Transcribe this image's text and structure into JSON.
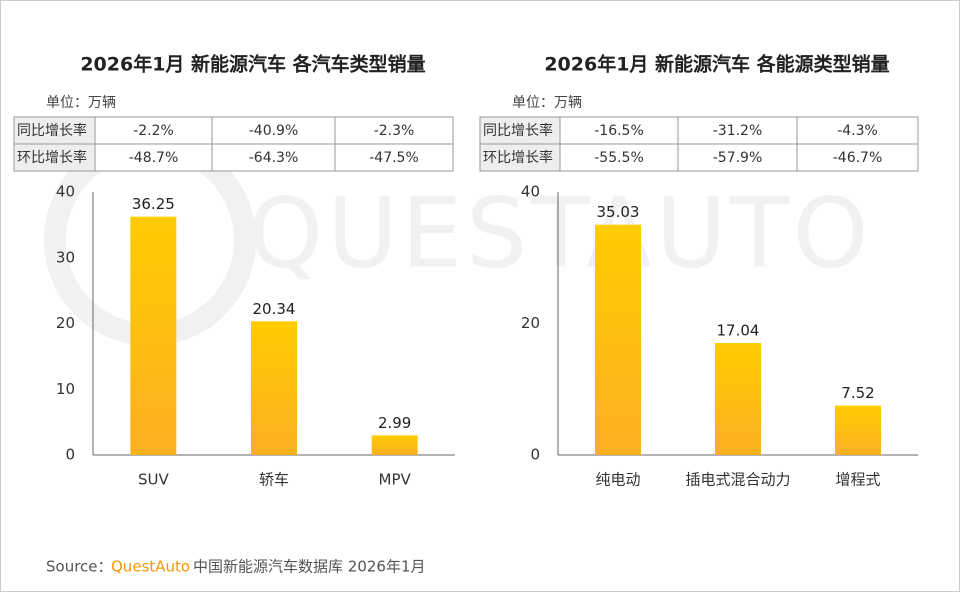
{
  "chart_data": [
    {
      "type": "bar",
      "title": "2026年1月 新能源汽车 各汽车类型销量",
      "unit": "单位：万辆",
      "table": [
        [
          "同比增长率",
          "-2.2%",
          "-40.9%",
          "-2.3%"
        ],
        [
          "环比增长率",
          "-48.7%",
          "-64.3%",
          "-47.5%"
        ]
      ],
      "categories": [
        "SUV",
        "轿车",
        "MPV"
      ],
      "values": [
        36.25,
        20.34,
        2.99
      ],
      "color": "#ffc107",
      "ylim": [
        0,
        40
      ],
      "yticks": [
        0,
        10,
        20,
        30,
        40
      ]
    },
    {
      "type": "bar",
      "title": "2026年1月 新能源汽车 各能源类型销量",
      "unit": "单位：万辆",
      "table": [
        [
          "同比增长率",
          "-16.5%",
          "-31.2%",
          "-4.3%"
        ],
        [
          "环比增长率",
          "-55.5%",
          "-57.9%",
          "-46.7%"
        ]
      ],
      "categories": [
        "纯电动",
        "插电式混合动力",
        "增程式"
      ],
      "values": [
        35.03,
        17.04,
        7.52
      ],
      "color": "#ffc107",
      "ylim": [
        0,
        40
      ],
      "yticks": [
        0,
        20,
        40
      ]
    }
  ],
  "watermark": "QUESTAUTO",
  "source": {
    "label": "Source：",
    "brand": "QuestAuto",
    "text": "中国新能源汽车数据库 2026年1月"
  }
}
